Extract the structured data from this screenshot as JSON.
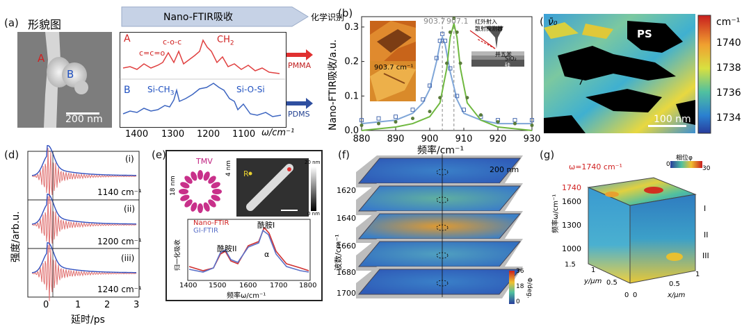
{
  "panels": {
    "a": {
      "label": "(a)",
      "title": "形貌图",
      "banner": "Nano-FTIR吸收",
      "banner_right": "化学识别",
      "A": "A",
      "B": "B",
      "scale": "200 nm",
      "rowA": {
        "tag": "A",
        "p1": "c=c=o",
        "p2": "c-o-c",
        "p3": "CH",
        "p3sub": "2",
        "out": "PMMA"
      },
      "rowB": {
        "tag": "B",
        "p1": "Si-CH",
        "p1sub": "3",
        "p2": "Si-O-Si",
        "out": "PDMS"
      },
      "xticks": [
        "1400",
        "1300",
        "1200",
        "1100"
      ],
      "xlabel": "ω/cm⁻¹"
    },
    "b": {
      "label": "(b)",
      "peak1": "903.7",
      "peak2": "907.1",
      "inset_label": "903.7 cm⁻¹",
      "ylabel": "Nano-FTIR吸收/a.u.",
      "xlabel": "频率/cm⁻¹",
      "schematic": {
        "l1": "红外射入",
        "l2": "散射探测器",
        "l3": "并五苯",
        "l4": "SiO₂",
        "l5": "硅"
      }
    },
    "c": {
      "label": "(c)",
      "nu": "ν̄₀",
      "ps": "PS",
      "scale": "100 nm",
      "unit": "cm⁻¹",
      "ticks": [
        "1740",
        "1738",
        "1736",
        "1734"
      ]
    },
    "d": {
      "label": "(d)",
      "ylabel": "强度/arb.u.",
      "xlabel": "延时/ps",
      "traces": [
        {
          "roman": "(i)",
          "wn": "1140 cm⁻¹"
        },
        {
          "roman": "(ii)",
          "wn": "1200 cm⁻¹"
        },
        {
          "roman": "(iii)",
          "wn": "1240 cm⁻¹"
        }
      ],
      "xticks": [
        "0",
        "1",
        "2",
        "3"
      ]
    },
    "e": {
      "label": "(e)",
      "tmv": "TMV",
      "d18": "18 nm",
      "d4": "4 nm",
      "R": "R",
      "cbar_top": "20 nm",
      "cbar_bot": "0 nm",
      "legend1": "Nano-FTIR",
      "legend2": "GI-FTIR",
      "amide1": "酰胺I",
      "amide2": "酰胺II",
      "alpha": "α",
      "ylabel": "归一化吸收",
      "xlabel": "频率ω/cm⁻¹",
      "xticks": [
        "1400",
        "1500",
        "1600",
        "1700",
        "1800"
      ]
    },
    "f": {
      "label": "(f)",
      "scale": "200 nm",
      "ylabel": "波数/cm⁻¹",
      "yticks": [
        "1620",
        "1640",
        "1660",
        "1680",
        "1700"
      ],
      "cbar": [
        "36",
        "18",
        "0"
      ],
      "cbar_label": "Φ/deg."
    },
    "g": {
      "label": "(g)",
      "omega": "ω=1740 cm⁻¹",
      "phase": "相位φ",
      "pticks": [
        "0",
        "30"
      ],
      "ylabel": "频率ω/cm⁻¹",
      "yticks": [
        "1740",
        "1600",
        "1300",
        "1000"
      ],
      "regions": [
        "I",
        "II",
        "III"
      ],
      "ylab2": "y/μm",
      "xlab2": "x/μm",
      "y2ticks": [
        "1.5",
        "1",
        "0.5",
        "0"
      ],
      "x2ticks": [
        "0",
        "0.5",
        "1"
      ]
    }
  },
  "chart_data": [
    {
      "type": "line",
      "title": "",
      "xlabel": "频率/cm⁻¹",
      "ylabel": "Nano-FTIR吸收/a.u.",
      "xlim": [
        880,
        930
      ],
      "ylim": [
        0,
        0.33
      ],
      "xticks": [
        880,
        890,
        900,
        910,
        920,
        930
      ],
      "yticks": [
        0.0,
        0.1,
        0.2,
        0.3
      ],
      "series": [
        {
          "color": "#7fa6d8",
          "x": [
            880,
            885,
            890,
            895,
            898,
            900,
            902,
            903,
            903.7,
            904.5,
            906,
            908,
            910,
            915,
            920,
            925,
            930
          ],
          "y": [
            0.02,
            0.025,
            0.03,
            0.05,
            0.08,
            0.12,
            0.2,
            0.25,
            0.27,
            0.25,
            0.17,
            0.09,
            0.05,
            0.03,
            0.02,
            0.02,
            0.02
          ]
        },
        {
          "color": "#6fb83f",
          "x": [
            880,
            885,
            890,
            895,
            900,
            903,
            905,
            906,
            907.1,
            908,
            909,
            911,
            915,
            920,
            925,
            930
          ],
          "y": [
            0.0,
            0.005,
            0.01,
            0.02,
            0.04,
            0.08,
            0.18,
            0.27,
            0.31,
            0.27,
            0.18,
            0.08,
            0.03,
            0.01,
            0.005,
            0.0
          ]
        }
      ]
    }
  ]
}
